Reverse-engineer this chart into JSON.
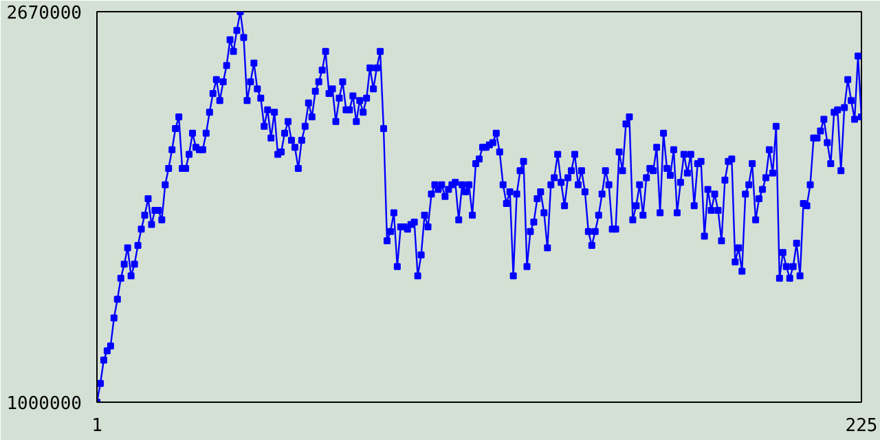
{
  "chart_data": {
    "type": "line",
    "marker": "square",
    "line_style": "solid",
    "xlim": [
      1,
      225
    ],
    "xticks": [
      1,
      225
    ],
    "ylim": [
      1000000,
      2670000
    ],
    "yticks": [
      1000000,
      2670000
    ],
    "x": [
      1,
      2,
      3,
      4,
      5,
      6,
      7,
      8,
      9,
      10,
      11,
      12,
      13,
      14,
      15,
      16,
      17,
      18,
      19,
      20,
      21,
      22,
      23,
      24,
      25,
      26,
      27,
      28,
      29,
      30,
      31,
      32,
      33,
      34,
      35,
      36,
      37,
      38,
      39,
      40,
      41,
      42,
      43,
      44,
      45,
      46,
      47,
      48,
      49,
      50,
      51,
      52,
      53,
      54,
      55,
      56,
      57,
      58,
      59,
      60,
      61,
      62,
      63,
      64,
      65,
      66,
      67,
      68,
      69,
      70,
      71,
      72,
      73,
      74,
      75,
      76,
      77,
      78,
      79,
      80,
      81,
      82,
      83,
      84,
      85,
      86,
      87,
      88,
      89,
      90,
      91,
      92,
      93,
      94,
      95,
      96,
      97,
      98,
      99,
      100,
      101,
      102,
      103,
      104,
      105,
      106,
      107,
      108,
      109,
      110,
      111,
      112,
      113,
      114,
      115,
      116,
      117,
      118,
      119,
      120,
      121,
      122,
      123,
      124,
      125,
      126,
      127,
      128,
      129,
      130,
      131,
      132,
      133,
      134,
      135,
      136,
      137,
      138,
      139,
      140,
      141,
      142,
      143,
      144,
      145,
      146,
      147,
      148,
      149,
      150,
      151,
      152,
      153,
      154,
      155,
      156,
      157,
      158,
      159,
      160,
      161,
      162,
      163,
      164,
      165,
      166,
      167,
      168,
      169,
      170,
      171,
      172,
      173,
      174,
      175,
      176,
      177,
      178,
      179,
      180,
      181,
      182,
      183,
      184,
      185,
      186,
      187,
      188,
      189,
      190,
      191,
      192,
      193,
      194,
      195,
      196,
      197,
      198,
      199,
      200,
      201,
      202,
      203,
      204,
      205,
      206,
      207,
      208,
      209,
      210,
      211,
      212,
      213,
      214,
      215,
      216,
      217,
      218,
      219,
      220,
      221,
      222,
      223,
      224,
      225
    ],
    "series": [
      {
        "color": "#0000ff",
        "values": [
          1000000,
          1080000,
          1180000,
          1220000,
          1240000,
          1360000,
          1440000,
          1530000,
          1590000,
          1660000,
          1540000,
          1590000,
          1670000,
          1740000,
          1800000,
          1870000,
          1760000,
          1820000,
          1820000,
          1780000,
          1930000,
          2000000,
          2080000,
          2170000,
          2220000,
          2000000,
          2000000,
          2060000,
          2150000,
          2090000,
          2080000,
          2080000,
          2150000,
          2240000,
          2320000,
          2380000,
          2290000,
          2370000,
          2440000,
          2550000,
          2500000,
          2590000,
          2670000,
          2560000,
          2290000,
          2370000,
          2450000,
          2340000,
          2300000,
          2180000,
          2250000,
          2130000,
          2240000,
          2060000,
          2070000,
          2150000,
          2200000,
          2120000,
          2090000,
          2000000,
          2120000,
          2180000,
          2280000,
          2220000,
          2330000,
          2370000,
          2420000,
          2500000,
          2320000,
          2340000,
          2200000,
          2300000,
          2370000,
          2250000,
          2250000,
          2310000,
          2200000,
          2290000,
          2240000,
          2300000,
          2430000,
          2340000,
          2430000,
          2500000,
          2170000,
          1690000,
          1730000,
          1810000,
          1580000,
          1750000,
          1750000,
          1740000,
          1760000,
          1770000,
          1540000,
          1630000,
          1800000,
          1750000,
          1890000,
          1930000,
          1910000,
          1930000,
          1880000,
          1910000,
          1930000,
          1940000,
          1780000,
          1930000,
          1900000,
          1930000,
          1800000,
          2020000,
          2040000,
          2090000,
          2090000,
          2100000,
          2110000,
          2150000,
          2070000,
          1930000,
          1850000,
          1900000,
          1540000,
          1890000,
          1990000,
          2030000,
          1580000,
          1730000,
          1770000,
          1870000,
          1900000,
          1810000,
          1660000,
          1930000,
          1960000,
          2060000,
          1940000,
          1840000,
          1960000,
          1990000,
          2060000,
          1930000,
          1990000,
          1900000,
          1730000,
          1670000,
          1730000,
          1800000,
          1890000,
          1990000,
          1930000,
          1740000,
          1740000,
          2070000,
          1990000,
          2190000,
          2220000,
          1780000,
          1840000,
          1930000,
          1800000,
          1960000,
          2000000,
          1990000,
          2090000,
          1810000,
          2150000,
          2000000,
          1970000,
          2080000,
          1810000,
          1940000,
          2060000,
          1980000,
          2060000,
          1840000,
          2020000,
          2030000,
          1710000,
          1910000,
          1820000,
          1890000,
          1820000,
          1690000,
          1950000,
          2030000,
          2040000,
          1600000,
          1660000,
          1560000,
          1890000,
          1930000,
          2020000,
          1780000,
          1870000,
          1910000,
          1960000,
          2080000,
          1980000,
          2180000,
          1530000,
          1640000,
          1580000,
          1530000,
          1580000,
          1680000,
          1540000,
          1850000,
          1840000,
          1930000,
          2130000,
          2130000,
          2160000,
          2210000,
          2110000,
          2020000,
          2240000,
          2250000,
          1990000,
          2260000,
          2380000,
          2290000,
          2210000,
          2480000,
          2220000
        ]
      }
    ]
  }
}
